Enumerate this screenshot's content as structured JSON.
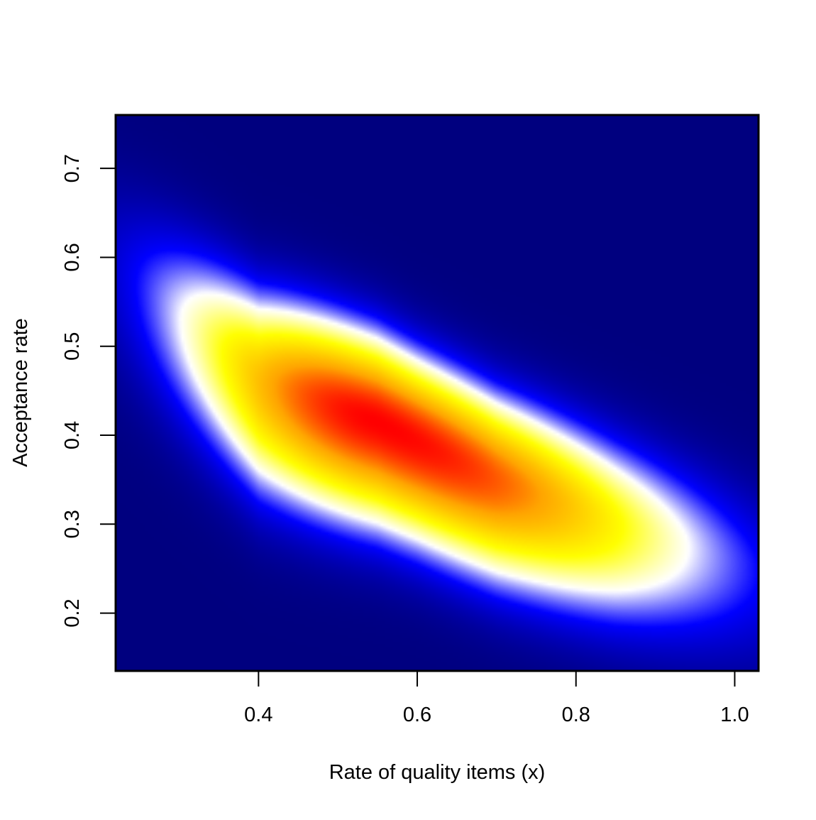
{
  "chart_data": {
    "type": "heatmap",
    "title": "",
    "xlabel": "Rate of quality items (x)",
    "ylabel": "Acceptance rate",
    "xlim": [
      0.22,
      1.03
    ],
    "ylim": [
      0.135,
      0.76
    ],
    "x_ticks": [
      0.4,
      0.6,
      0.8,
      1.0
    ],
    "x_tick_labels": [
      "0.4",
      "0.6",
      "0.8",
      "1.0"
    ],
    "y_ticks": [
      0.2,
      0.3,
      0.4,
      0.5,
      0.6,
      0.7
    ],
    "y_tick_labels": [
      "0.2",
      "0.3",
      "0.4",
      "0.5",
      "0.6",
      "0.7"
    ],
    "grid": false,
    "legend": "none",
    "color_scale": [
      "#00007f",
      "#0000ff",
      "#ffffff",
      "#ffff00",
      "#ffa500",
      "#ff0000"
    ],
    "density_peak": {
      "x": 0.55,
      "y": 0.415
    },
    "density_ridge": [
      {
        "x": 0.3,
        "y": 0.53
      },
      {
        "x": 0.4,
        "y": 0.46
      },
      {
        "x": 0.55,
        "y": 0.415
      },
      {
        "x": 0.7,
        "y": 0.35
      },
      {
        "x": 0.85,
        "y": 0.3
      },
      {
        "x": 0.97,
        "y": 0.265
      }
    ]
  }
}
